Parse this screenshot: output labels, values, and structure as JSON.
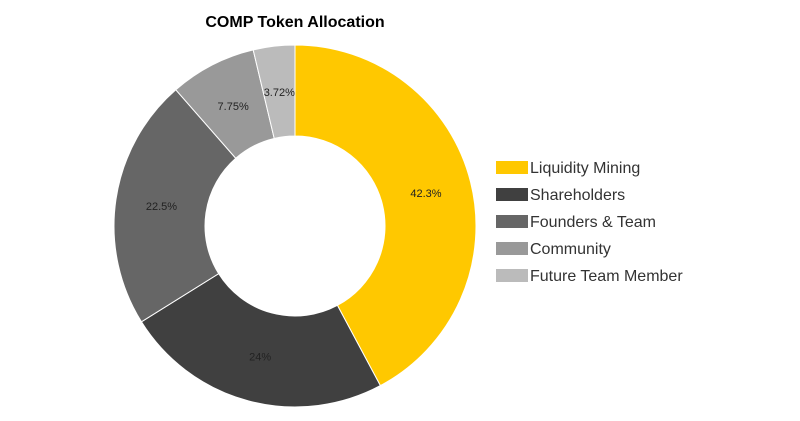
{
  "chart_data": {
    "type": "pie",
    "title": "COMP Token Allocation",
    "donut": true,
    "legend_position": "right",
    "slices": [
      {
        "label": "Liquidity Mining",
        "value": 42.3,
        "display": "42.3%",
        "color": "#FFC800"
      },
      {
        "label": "Shareholders",
        "value": 24,
        "display": "24%",
        "color": "#404040"
      },
      {
        "label": "Founders & Team",
        "value": 22.5,
        "display": "22.5%",
        "color": "#666666"
      },
      {
        "label": "Community",
        "value": 7.75,
        "display": "7.75%",
        "color": "#999999"
      },
      {
        "label": "Future Team Member",
        "value": 3.72,
        "display": "3.72%",
        "color": "#BBBBBB"
      }
    ]
  }
}
